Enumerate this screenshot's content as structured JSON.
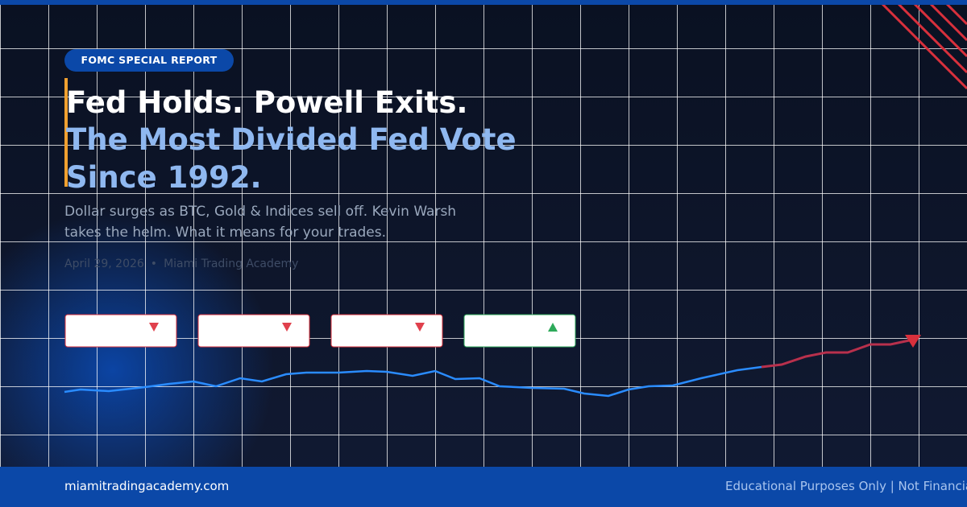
{
  "badge": "FOMC SPECIAL REPORT",
  "title": {
    "line1": "Fed Holds. Powell Exits.",
    "line2": "The Most Divided Fed Vote",
    "line3": "Since 1992."
  },
  "subtitle": {
    "line1": "Dollar surges as BTC, Gold & Indices sell off. Kevin Warsh",
    "line2": "takes the helm. What it means for your trades."
  },
  "meta": {
    "date": "April 29, 2026",
    "separator": "•",
    "author": "Miami Trading Academy"
  },
  "footer": {
    "site": "miamitradingacademy.com",
    "disclaimer": "Educational Purposes Only | Not Financial Advice"
  }
}
